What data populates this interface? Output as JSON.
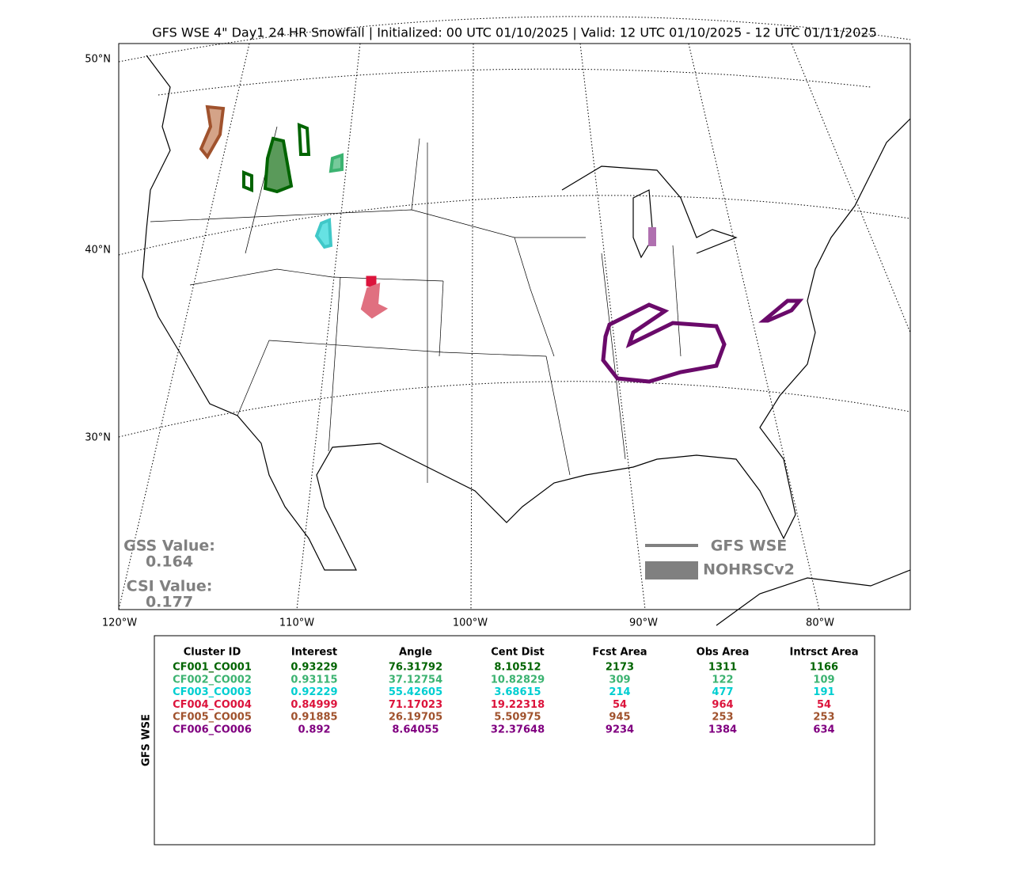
{
  "title": "GFS WSE 4\" Day1 24 HR Snowfall | Initialized: 00 UTC 01/10/2025 | Valid: 12 UTC 01/10/2025 - 12 UTC 01/11/2025",
  "map": {
    "lat_labels": [
      "50°N",
      "40°N",
      "30°N"
    ],
    "lon_labels": [
      "120°W",
      "110°W",
      "100°W",
      "90°W",
      "80°W"
    ],
    "scores": [
      {
        "label": "GSS Value:",
        "value": "0.164"
      },
      {
        "label": "CSI Value:",
        "value": "0.177"
      }
    ],
    "legend": [
      "GFS WSE",
      "NOHRSCv2"
    ],
    "score_color": "#808080"
  },
  "table": {
    "side_label": "GFS WSE",
    "header": [
      "Cluster ID",
      "Interest",
      "Angle",
      "Cent Dist",
      "Fcst Area",
      "Obs Area",
      "Intrsct Area"
    ],
    "rows": [
      [
        "CF001_CO001",
        "0.93229",
        "76.31792",
        "8.10512",
        "2173",
        "1311",
        "1166"
      ],
      [
        "CF002_CO002",
        "0.93115",
        "37.12754",
        "10.82829",
        "309",
        "122",
        "109"
      ],
      [
        "CF003_CO003",
        "0.92229",
        "55.42605",
        "3.68615",
        "214",
        "477",
        "191"
      ],
      [
        "CF004_CO004",
        "0.84999",
        "71.17023",
        "19.22318",
        "54",
        "964",
        "54"
      ],
      [
        "CF005_CO005",
        "0.91885",
        "26.19705",
        "5.50975",
        "945",
        "253",
        "253"
      ],
      [
        "CF006_CO006",
        "0.892",
        "8.64055",
        "32.37648",
        "9234",
        "1384",
        "634"
      ]
    ],
    "row_colors": [
      "#006400",
      "#3cb371",
      "#00ced1",
      "#dc143c",
      "#a0522d",
      "#800080"
    ]
  }
}
